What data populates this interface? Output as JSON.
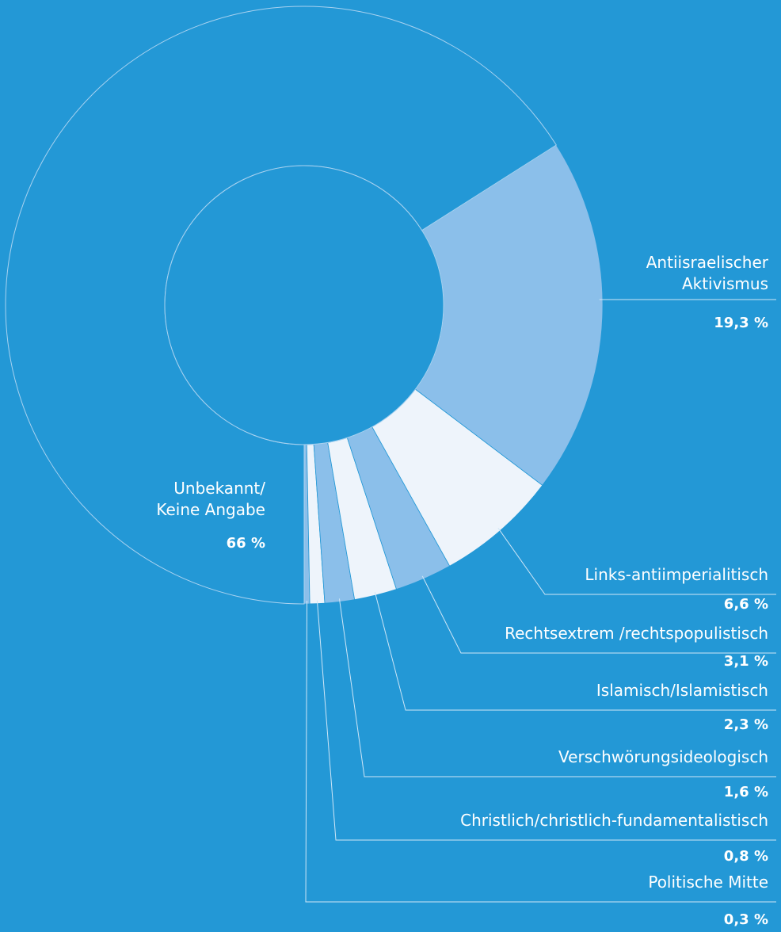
{
  "chart_data": {
    "type": "donut",
    "categories": [
      "Politische Mitte",
      "Christlich/christlich-fundamentalistisch",
      "Verschwörungsideologisch",
      "Islamisch/Islamistisch",
      "Rechtsextrem /rechtspopulistisch",
      "Links-antiimperialitisch",
      "Antiisraelischer\nAktivismus",
      "Unbekannt/\nKeine Angabe"
    ],
    "values": [
      0.3,
      0.8,
      1.6,
      2.3,
      3.1,
      6.6,
      19.3,
      66
    ],
    "value_labels": [
      "0,3 %",
      "0,8 %",
      "1,6 %",
      "2,3 %",
      "3,1 %",
      "6,6 %",
      "19,3 %",
      "66 %"
    ],
    "colors": [
      "#8bbfea",
      "#eef4fb",
      "#8bbfea",
      "#eef4fb",
      "#8bbfea",
      "#eef4fb",
      "#8bbfea",
      "#2398d6"
    ]
  }
}
